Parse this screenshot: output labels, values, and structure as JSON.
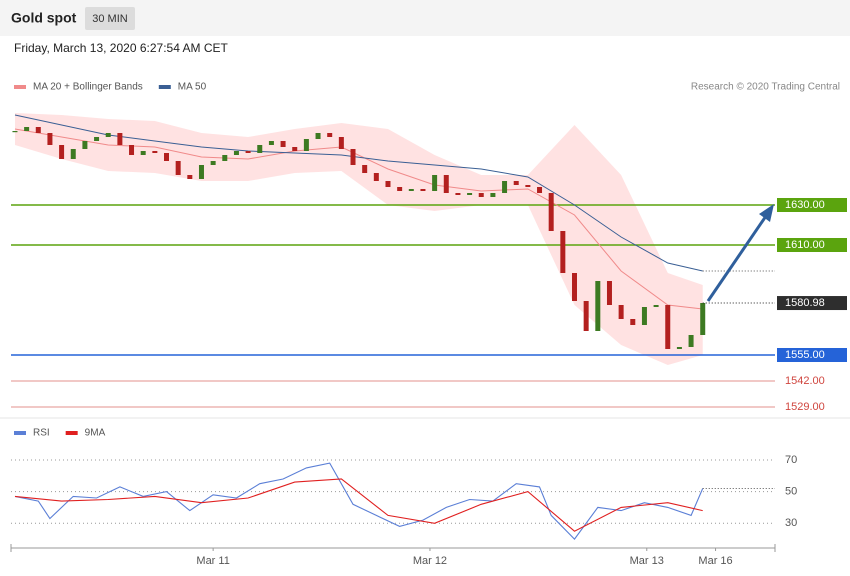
{
  "header": {
    "title": "Gold spot",
    "interval": "30 MIN",
    "timestamp": "Friday, March 13, 2020 6:27:54 AM CET",
    "credit": "Research © 2020 Trading Central"
  },
  "chart_data": [
    {
      "type": "candlestick",
      "xlim": [
        -0.34,
        65.2
      ],
      "ylim": [
        1525,
        1685
      ],
      "candles": {
        "up_color": "#3d7a22",
        "down_color": "#b3201f",
        "values": [
          1667,
          1669,
          1666,
          1660,
          1653,
          1658,
          1662,
          1664,
          1666,
          1660,
          1655,
          1657,
          1656,
          1652,
          1645,
          1643,
          1650,
          1652,
          1655,
          1657,
          1656,
          1660,
          1662,
          1659,
          1657,
          1663,
          1666,
          1664,
          1658,
          1650,
          1646,
          1642,
          1639,
          1637,
          1638,
          1637,
          1645,
          1636,
          1635,
          1636,
          1634,
          1636,
          1642,
          1640,
          1639,
          1636,
          1617,
          1596,
          1582,
          1567,
          1592,
          1580,
          1573,
          1570,
          1579,
          1580,
          1558,
          1559,
          1565,
          1581
        ]
      },
      "series": [
        {
          "name": "MA 20 + Bollinger Bands",
          "color": "#f08a8a",
          "band_color": "#ffd6d6",
          "x": [
            0,
            4,
            8,
            12,
            16,
            20,
            24,
            28,
            32,
            36,
            40,
            44,
            48,
            52,
            56,
            59
          ],
          "values": [
            1668,
            1664,
            1660,
            1659,
            1654,
            1653,
            1657,
            1659,
            1648,
            1640,
            1637,
            1638,
            1625,
            1597,
            1580,
            1578
          ],
          "upper": [
            1676,
            1675,
            1673,
            1672,
            1666,
            1664,
            1668,
            1671,
            1668,
            1655,
            1645,
            1645,
            1670,
            1645,
            1596,
            1590
          ],
          "lower": [
            1660,
            1653,
            1647,
            1646,
            1642,
            1642,
            1646,
            1647,
            1630,
            1627,
            1630,
            1630,
            1580,
            1560,
            1550,
            1555
          ]
        },
        {
          "name": "MA 50",
          "color": "#3a5f94",
          "x": [
            0,
            4,
            8,
            12,
            16,
            20,
            24,
            28,
            32,
            36,
            40,
            44,
            48,
            52,
            56,
            59
          ],
          "values": [
            1675,
            1670,
            1665,
            1662,
            1659,
            1657,
            1656,
            1655,
            1652,
            1650,
            1648,
            1644,
            1630,
            1614,
            1601,
            1597
          ]
        }
      ],
      "levels": [
        {
          "value": 1630,
          "label": "1630.00",
          "color": "#5ba40e",
          "boxed": true
        },
        {
          "value": 1610,
          "label": "1610.00",
          "color": "#5ba40e",
          "boxed": true
        },
        {
          "value": 1555,
          "label": "1555.00",
          "color": "#2563d8",
          "boxed": true
        },
        {
          "value": 1542,
          "label": "1542.00",
          "color": "#d0463f",
          "boxed": false
        },
        {
          "value": 1529,
          "label": "1529.00",
          "color": "#d0463f",
          "boxed": false
        }
      ],
      "last_price": 1580.98
    },
    {
      "type": "line",
      "xlim": [
        -0.34,
        65.2
      ],
      "ylim": [
        15,
        82
      ],
      "yticks": [
        30,
        50,
        70
      ],
      "xticks": [
        {
          "value": 17,
          "label": "Mar 11"
        },
        {
          "value": 35.6,
          "label": "Mar 12"
        },
        {
          "value": 54.2,
          "label": "Mar 13"
        },
        {
          "value": 60.1,
          "label": "Mar 16"
        }
      ],
      "series": [
        {
          "name": "RSI",
          "color": "#5b7fd6",
          "x": [
            0,
            2,
            3,
            5,
            7,
            9,
            11,
            13,
            15,
            17,
            19,
            21,
            23,
            25,
            27,
            29,
            31,
            33,
            35,
            37,
            39,
            41,
            43,
            45,
            46,
            48,
            50,
            52,
            54,
            56,
            58,
            59
          ],
          "values": [
            47,
            44,
            33,
            47,
            46,
            53,
            47,
            50,
            38,
            48,
            46,
            55,
            58,
            65,
            68,
            42,
            35,
            28,
            32,
            40,
            45,
            44,
            55,
            53,
            35,
            20,
            40,
            38,
            43,
            40,
            35,
            52
          ]
        },
        {
          "name": "9MA",
          "color": "#e02020",
          "x": [
            0,
            4,
            8,
            12,
            16,
            20,
            24,
            28,
            32,
            36,
            40,
            44,
            48,
            52,
            56,
            59
          ],
          "values": [
            47,
            44,
            45,
            47,
            43,
            46,
            56,
            58,
            35,
            30,
            42,
            50,
            25,
            40,
            43,
            38
          ]
        }
      ]
    }
  ]
}
